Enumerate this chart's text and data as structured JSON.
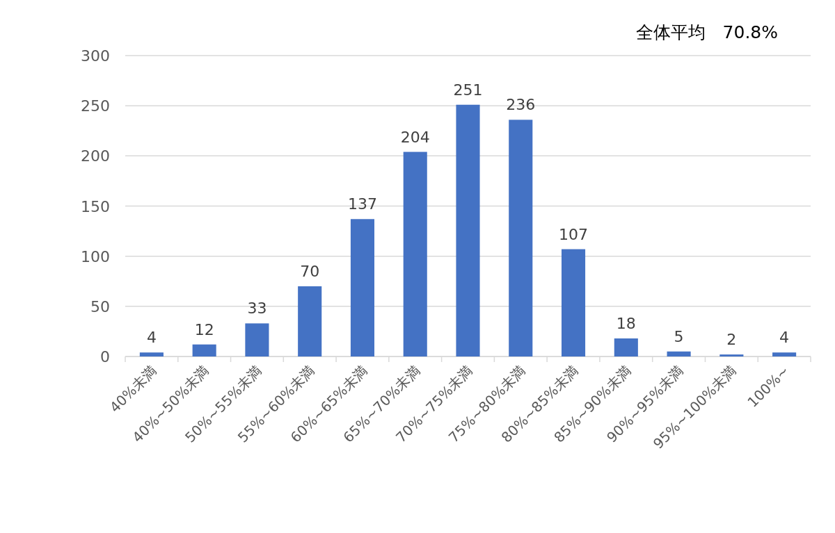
{
  "chart_data": {
    "type": "bar",
    "categories": [
      "40%未満",
      "40%~50%未満",
      "50%~55%未満",
      "55%~60%未満",
      "60%~65%未満",
      "65%~70%未満",
      "70%~75%未満",
      "75%~80%未満",
      "80%~85%未満",
      "85%~90%未満",
      "90%~95%未満",
      "95%~100%未満",
      "100%~"
    ],
    "values": [
      4,
      12,
      33,
      70,
      137,
      204,
      251,
      236,
      107,
      18,
      5,
      2,
      4
    ],
    "color": "#4472c4",
    "ylim": [
      0,
      300
    ],
    "yticks": [
      0,
      50,
      100,
      150,
      200,
      250,
      300
    ],
    "grid": "y",
    "data_labels": true,
    "annotations": [
      "全体平均　70.8%"
    ]
  }
}
